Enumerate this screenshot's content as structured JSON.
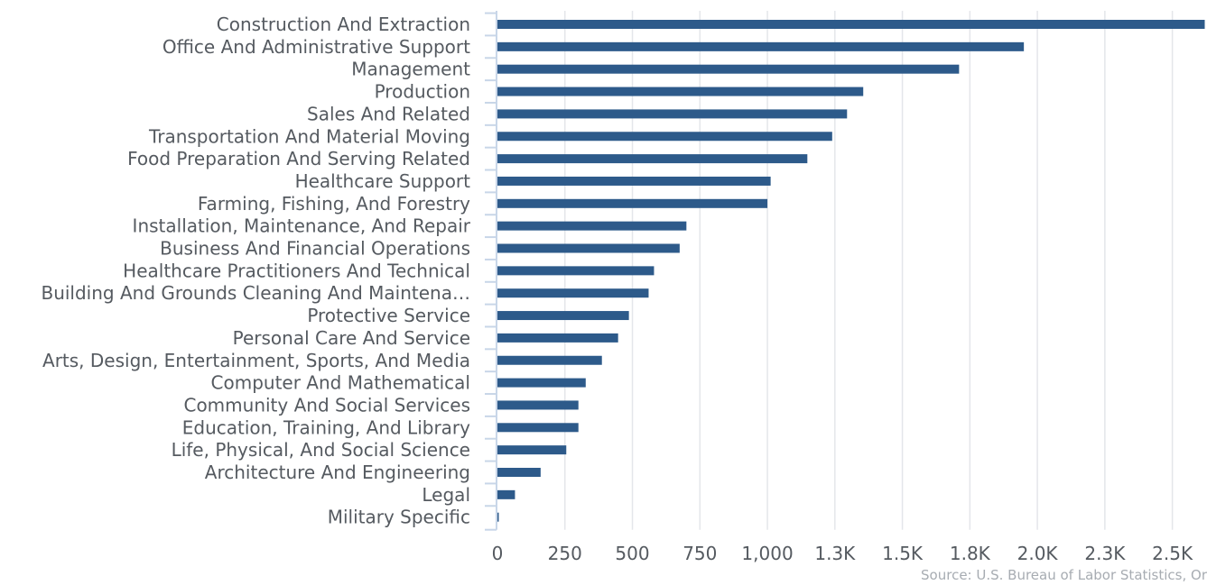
{
  "chart_data": {
    "type": "bar",
    "orientation": "horizontal",
    "categories": [
      "Construction And Extraction",
      "Office And Administrative Support",
      "Management",
      "Production",
      "Sales And Related",
      "Transportation And Material Moving",
      "Food Preparation And Serving Related",
      "Healthcare Support",
      "Farming, Fishing, And Forestry",
      "Installation, Maintenance, And Repair",
      "Business And Financial Operations",
      "Healthcare Practitioners And Technical",
      "Building And Grounds Cleaning And Maintena…",
      "Protective Service",
      "Personal Care And Service",
      "Arts, Design, Entertainment, Sports, And Media",
      "Computer And Mathematical",
      "Community And Social Services",
      "Education, Training, And Library",
      "Life, Physical, And Social Science",
      "Architecture And Engineering",
      "Legal",
      "Military Specific"
    ],
    "values": [
      2620,
      1950,
      1710,
      1355,
      1295,
      1240,
      1148,
      1012,
      1000,
      700,
      675,
      580,
      560,
      487,
      447,
      387,
      327,
      300,
      300,
      255,
      160,
      65,
      5
    ],
    "xlim": [
      0,
      2625
    ],
    "x_ticks": [
      0,
      250,
      500,
      750,
      1000,
      1250,
      1500,
      1750,
      2000,
      2250,
      2500
    ],
    "x_tick_labels": [
      "0",
      "250",
      "500",
      "750",
      "1,000",
      "1.3K",
      "1.5K",
      "1.8K",
      "2.0K",
      "2.3K",
      "2.5K"
    ],
    "grid": true,
    "bar_color": "#2d5a8a",
    "source": "Source: U.S. Bureau of Labor Statistics, Or"
  }
}
